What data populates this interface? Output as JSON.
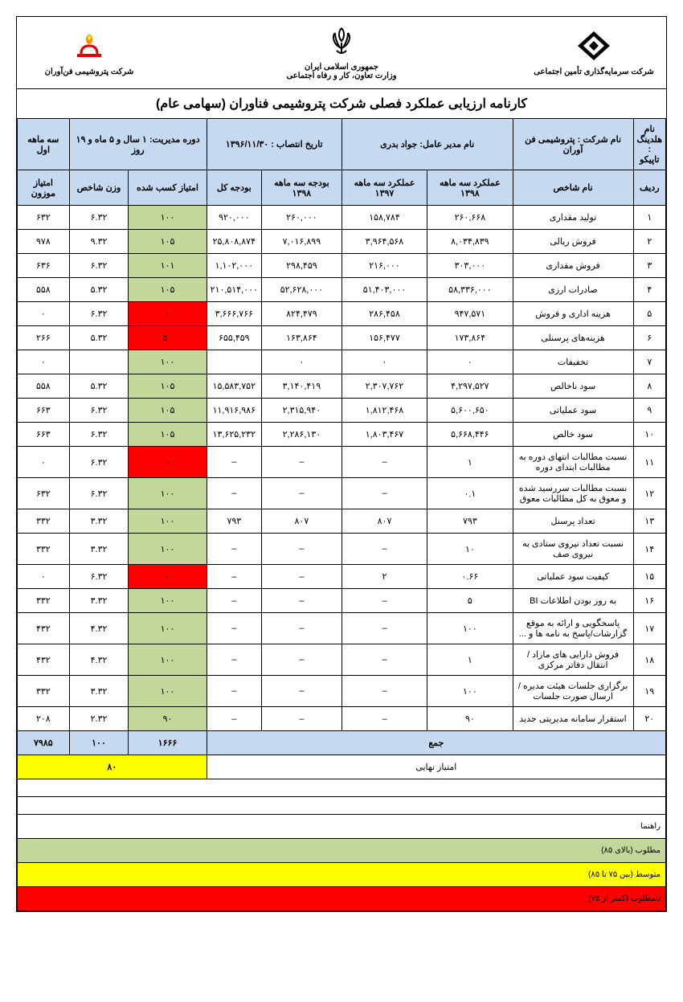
{
  "header": {
    "logo_right_text": "شرکت سرمایه‌گذاری تأمین اجتماعی",
    "logo_center_line1": "جمهوری اسلامی ایران",
    "logo_center_line2": "وزارت تعاون، کار و رفاه اجتماعی",
    "logo_left_text": "شرکت پتروشیمی فن‌آوران"
  },
  "title": "کارنامه ارزیابی عملکرد فصلی شرکت پتروشیمی فناوران (سهامی عام)",
  "info": {
    "holding_label": "نام هلدینگ :",
    "holding": "تاپیکو",
    "company_label": "نام شرکت : پتروشیمی فن آوران",
    "ceo_label": "نام مدیر عامل: جواد بدری",
    "appoint_label": "تاریخ انتصاب : ۱۳۹۶/۱۱/۳۰",
    "period_label": "دوره مدیریت: ۱ سال و ۵ ماه و ۱۹ روز",
    "quarter_label": "سه ماهه اول"
  },
  "columns": {
    "c1": "ردیف",
    "c2": "نام شاخص",
    "c3": "عملکرد سه ماهه ۱۳۹۸",
    "c4": "عملکرد سه ماهه ۱۳۹۷",
    "c5": "بودجه سه ماهه ۱۳۹۸",
    "c6": "بودجه کل",
    "c7": "امتیاز کسب شده",
    "c8": "وزن شاخص",
    "c9": "امتیاز موزون"
  },
  "rows": [
    {
      "n": "۱",
      "name": "تولید مقداری",
      "p98": "۲۶۰,۶۶۸",
      "p97": "۱۵۸,۷۸۴",
      "b98": "۲۶۰,۰۰۰",
      "btot": "۹۲۰,۰۰۰",
      "score": "۱۰۰",
      "color": "score-green",
      "w": "۶.۳۲",
      "wz": "۶۳۲"
    },
    {
      "n": "۲",
      "name": "فروش ریالی",
      "p98": "۸,۰۳۴,۸۳۹",
      "p97": "۳,۹۶۴,۵۶۸",
      "b98": "۷,۰۱۶,۸۹۹",
      "btot": "۲۵,۸۰۸,۸۷۴",
      "score": "۱۰۵",
      "color": "score-green",
      "w": "۹.۳۲",
      "wz": "۹۷۸"
    },
    {
      "n": "۳",
      "name": "فروش مقداری",
      "p98": "۳۰۳,۰۰۰",
      "p97": "۲۱۶,۰۰۰",
      "b98": "۲۹۸,۴۵۹",
      "btot": "۱,۱۰۲,۰۰۰",
      "score": "۱۰۱",
      "color": "score-green",
      "w": "۶.۳۲",
      "wz": "۶۳۶"
    },
    {
      "n": "۴",
      "name": "صادرات ارزی",
      "p98": "۵۸,۳۳۶,۰۰۰",
      "p97": "۵۱,۴۰۳,۰۰۰",
      "b98": "۵۲,۶۲۸,۰۰۰",
      "btot": "۲۱۰,۵۱۴,۰۰۰",
      "score": "۱۰۵",
      "color": "score-green",
      "w": "۵.۳۲",
      "wz": "۵۵۸"
    },
    {
      "n": "۵",
      "name": "هزینه اداری و فروش",
      "p98": "۹۴۷,۵۷۱",
      "p97": "۲۸۶,۴۵۸",
      "b98": "۸۲۴,۴۷۹",
      "btot": "۳,۶۶۶,۷۶۶",
      "score": "۰",
      "color": "score-red",
      "w": "۶.۳۲",
      "wz": "۰"
    },
    {
      "n": "۶",
      "name": "هزینه‌های پرسنلی",
      "p98": "۱۷۳,۸۶۴",
      "p97": "۱۵۶,۴۷۷",
      "b98": "۱۶۳,۸۶۴",
      "btot": "۶۵۵,۴۵۹",
      "score": "۵۰",
      "color": "score-red",
      "w": "۵.۳۲",
      "wz": "۲۶۶"
    },
    {
      "n": "۷",
      "name": "تخفیفات",
      "p98": "۰",
      "p97": "۰",
      "b98": "۰",
      "btot": "",
      "score": "۱۰۰",
      "color": "score-green",
      "w": "",
      "wz": "۰"
    },
    {
      "n": "۸",
      "name": "سود ناخالص",
      "p98": "۴,۲۹۷,۵۲۷",
      "p97": "۲,۳۰۷,۷۶۲",
      "b98": "۳,۱۴۰,۴۱۹",
      "btot": "۱۵,۵۸۳,۷۵۲",
      "score": "۱۰۵",
      "color": "score-green",
      "w": "۵.۳۲",
      "wz": "۵۵۸"
    },
    {
      "n": "۹",
      "name": "سود عملیاتی",
      "p98": "۵,۶۰۰,۶۵۰",
      "p97": "۱,۸۱۲,۴۶۸",
      "b98": "۲,۳۱۵,۹۴۰",
      "btot": "۱۱,۹۱۶,۹۸۶",
      "score": "۱۰۵",
      "color": "score-green",
      "w": "۶.۳۲",
      "wz": "۶۶۳"
    },
    {
      "n": "۱۰",
      "name": "سود خالص",
      "p98": "۵,۶۶۸,۴۴۶",
      "p97": "۱,۸۰۳,۴۶۷",
      "b98": "۲,۲۸۶,۱۳۰",
      "btot": "۱۳,۶۲۵,۲۳۲",
      "score": "۱۰۵",
      "color": "score-green",
      "w": "۶.۳۲",
      "wz": "۶۶۳"
    },
    {
      "n": "۱۱",
      "name": "نسبت مطالبات انتهای دوره به مطالبات ابتدای دوره",
      "p98": "۱",
      "p97": "–",
      "b98": "–",
      "btot": "–",
      "score": "۰",
      "color": "score-red",
      "w": "۶.۳۲",
      "wz": "۰"
    },
    {
      "n": "۱۲",
      "name": "نسبت مطالبات سررسید شده و معوق به کل مطالبات معوق",
      "p98": "۰.۱",
      "p97": "–",
      "b98": "–",
      "btot": "–",
      "score": "۱۰۰",
      "color": "score-green",
      "w": "۶.۳۲",
      "wz": "۶۳۲"
    },
    {
      "n": "۱۳",
      "name": "تعداد پرسنل",
      "p98": "۷۹۳",
      "p97": "۸۰۷",
      "b98": "۸۰۷",
      "btot": "۷۹۳",
      "score": "۱۰۰",
      "color": "score-green",
      "w": "۳.۳۲",
      "wz": "۳۳۲"
    },
    {
      "n": "۱۴",
      "name": "نسبت تعداد نیروی ستادی به نیروی صف",
      "p98": "۱۰",
      "p97": "–",
      "b98": "–",
      "btot": "–",
      "score": "۱۰۰",
      "color": "score-green",
      "w": "۳.۳۲",
      "wz": "۳۳۲"
    },
    {
      "n": "۱۵",
      "name": "کیفیت سود عملیاتی",
      "p98": "۰.۶۶",
      "p97": "۲",
      "b98": "–",
      "btot": "–",
      "score": "۰",
      "color": "score-red",
      "w": "۶.۳۲",
      "wz": "۰"
    },
    {
      "n": "۱۶",
      "name": "به روز بودن اطلاعات BI",
      "p98": "۵",
      "p97": "–",
      "b98": "–",
      "btot": "–",
      "score": "۱۰۰",
      "color": "score-green",
      "w": "۳.۳۲",
      "wz": "۳۳۲"
    },
    {
      "n": "۱۷",
      "name": "پاسخگویی و ارائه به موقع گزارشات/پاسخ به نامه ها و ...",
      "p98": "۱۰۰",
      "p97": "–",
      "b98": "–",
      "btot": "–",
      "score": "۱۰۰",
      "color": "score-green",
      "w": "۴.۳۲",
      "wz": "۴۳۲"
    },
    {
      "n": "۱۸",
      "name": "فروش دارایی های مازاد / انتقال دفاتر مرکزی",
      "p98": "۱",
      "p97": "–",
      "b98": "–",
      "btot": "–",
      "score": "۱۰۰",
      "color": "score-green",
      "w": "۴.۳۲",
      "wz": "۴۳۲"
    },
    {
      "n": "۱۹",
      "name": "برگزاری جلسات هیئت مدیره / ارسال صورت جلسات",
      "p98": "۱۰۰",
      "p97": "–",
      "b98": "–",
      "btot": "–",
      "score": "۱۰۰",
      "color": "score-green",
      "w": "۳.۳۲",
      "wz": "۳۳۲"
    },
    {
      "n": "۲۰",
      "name": "استقرار سامانه مدیریتی جدید",
      "p98": "۹۰",
      "p97": "–",
      "b98": "–",
      "btot": "–",
      "score": "۹۰",
      "color": "score-green",
      "w": "۲.۳۲",
      "wz": "۲۰۸"
    }
  ],
  "sum": {
    "label": "جمع",
    "score": "۱۶۶۶",
    "w": "۱۰۰",
    "wz": "۷۹۸۵"
  },
  "final": {
    "label": "امتیاز نهایی",
    "value": "۸۰"
  },
  "legend": {
    "title": "راهنما",
    "good": "مطلوب (بالای ۸۵)",
    "mid": "متوسط (بین ۷۵ تا ۸۵)",
    "bad": "نامطلوب (کمتر از ۷۵)"
  }
}
